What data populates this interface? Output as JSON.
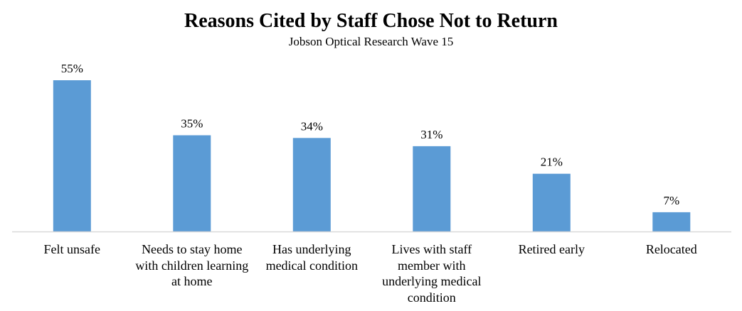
{
  "chart_data": {
    "type": "bar",
    "title": "Reasons Cited by Staff Chose Not to Return",
    "subtitle": "Jobson Optical Research Wave 15",
    "categories": [
      "Felt unsafe",
      "Needs to stay home with children learning at home",
      "Has underlying medical condition",
      "Lives with staff member with underlying medical condition",
      "Retired early",
      "Relocated"
    ],
    "values": [
      55,
      35,
      34,
      31,
      21,
      7
    ],
    "data_labels": [
      "55%",
      "35%",
      "34%",
      "31%",
      "21%",
      "7%"
    ],
    "ylim": [
      0,
      55
    ],
    "grid": false,
    "legend": "none",
    "bar_color": "#5b9bd5",
    "axis_color": "#d9d9d9"
  }
}
